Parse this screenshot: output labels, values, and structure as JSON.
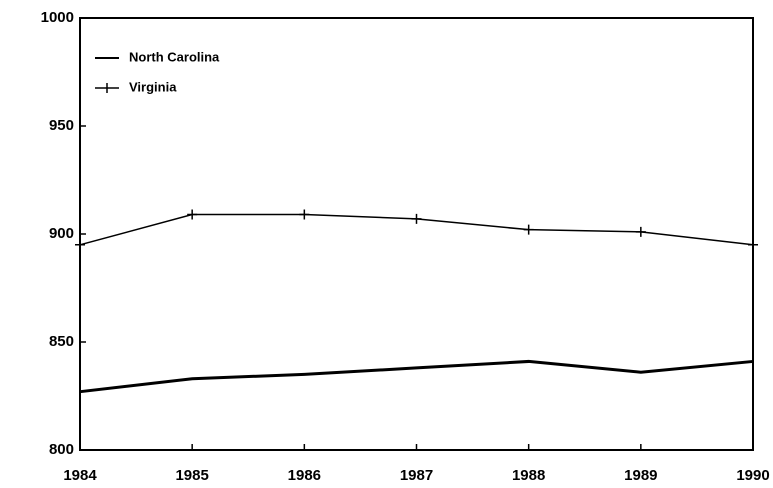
{
  "chart_data": {
    "type": "line",
    "x": [
      1984,
      1985,
      1986,
      1987,
      1988,
      1989,
      1990
    ],
    "xlim": [
      1984,
      1990
    ],
    "xticks": [
      1984,
      1985,
      1986,
      1987,
      1988,
      1989,
      1990
    ],
    "ylim": [
      800,
      1000
    ],
    "yticks": [
      800,
      850,
      900,
      950,
      1000
    ],
    "grid": false,
    "legend": "upper left",
    "series": [
      {
        "name": "North Carolina",
        "color": "#000000",
        "linewidth": 3,
        "marker": "none",
        "values": [
          827,
          833,
          835,
          838,
          841,
          836,
          841
        ]
      },
      {
        "name": "Virginia",
        "color": "#000000",
        "linewidth": 1.5,
        "marker": "plus",
        "values": [
          895,
          909,
          909,
          907,
          902,
          901,
          895
        ]
      }
    ]
  }
}
